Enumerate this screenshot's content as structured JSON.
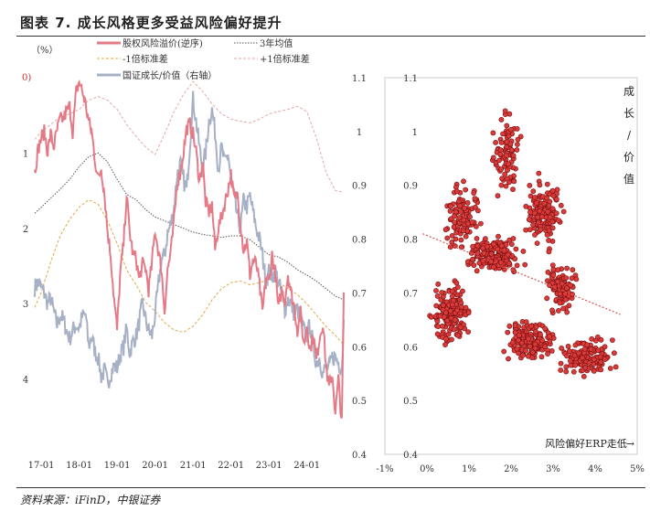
{
  "figure_title": "图表 7. 成长风格更多受益风险偏好提升",
  "source_note": "资料来源：iFinD，中银证券",
  "chart_data": [
    {
      "id": "left",
      "type": "line",
      "left_axis_unit": "（%）",
      "left_axis_zero_label": "0)",
      "left_axis_ticks": [
        "1",
        "2",
        "3",
        "4"
      ],
      "left_ylim": [
        -5,
        0
      ],
      "left_axis_inverted": true,
      "right_axis_label": "",
      "right_ylim": [
        0.4,
        1.1
      ],
      "right_axis_ticks": [
        "0.4",
        "0.5",
        "0.6",
        "0.7",
        "0.8",
        "0.9",
        "1",
        "1.1"
      ],
      "x_ticks": [
        "17-01",
        "18-01",
        "19-01",
        "20-01",
        "21-01",
        "22-01",
        "23-01",
        "24-01"
      ],
      "xlim": [
        2016.83,
        2024.97
      ],
      "legend": [
        {
          "label": "股权风险溢价(逆序)",
          "color": "#e57a86",
          "style": "solid"
        },
        {
          "label": "3年均值",
          "color": "#555555",
          "style": "dotted"
        },
        {
          "label": "-1倍标准差",
          "color": "#e0a84a",
          "style": "dashed"
        },
        {
          "label": "+1倍标准差",
          "color": "#e8a6a6",
          "style": "dashed"
        },
        {
          "label": "国证成长/价值（右轴）",
          "color": "#a7b1c6",
          "style": "solid"
        }
      ],
      "series": [
        {
          "name": "股权风险溢价(逆序)",
          "axis": "left",
          "color": "#e57a86",
          "x": [
            2016.83,
            2016.92,
            2017.0,
            2017.08,
            2017.17,
            2017.25,
            2017.33,
            2017.42,
            2017.5,
            2017.58,
            2017.67,
            2017.75,
            2017.83,
            2017.92,
            2018.0,
            2018.08,
            2018.17,
            2018.25,
            2018.33,
            2018.42,
            2018.5,
            2018.58,
            2018.67,
            2018.75,
            2018.83,
            2018.92,
            2019.0,
            2019.08,
            2019.17,
            2019.25,
            2019.33,
            2019.42,
            2019.5,
            2019.58,
            2019.67,
            2019.75,
            2019.83,
            2019.92,
            2020.0,
            2020.08,
            2020.17,
            2020.25,
            2020.33,
            2020.42,
            2020.5,
            2020.58,
            2020.67,
            2020.75,
            2020.83,
            2020.92,
            2021.0,
            2021.08,
            2021.17,
            2021.25,
            2021.33,
            2021.42,
            2021.5,
            2021.58,
            2021.67,
            2021.75,
            2021.83,
            2021.92,
            2022.0,
            2022.08,
            2022.17,
            2022.25,
            2022.33,
            2022.42,
            2022.5,
            2022.58,
            2022.67,
            2022.75,
            2022.83,
            2022.92,
            2023.0,
            2023.08,
            2023.17,
            2023.25,
            2023.33,
            2023.42,
            2023.5,
            2023.58,
            2023.67,
            2023.75,
            2023.83,
            2023.92,
            2024.0,
            2024.08,
            2024.17,
            2024.25,
            2024.33,
            2024.42,
            2024.5,
            2024.58,
            2024.67,
            2024.75,
            2024.83,
            2024.92,
            2024.97
          ],
          "y": [
            -1.25,
            -0.95,
            -0.8,
            -0.72,
            -0.98,
            -0.75,
            -0.92,
            -0.7,
            -0.55,
            -0.55,
            -0.45,
            -0.38,
            -0.72,
            -0.2,
            -0.05,
            -0.18,
            -0.35,
            -0.58,
            -0.72,
            -1.1,
            -1.35,
            -1.2,
            -1.55,
            -2.05,
            -2.35,
            -2.95,
            -3.35,
            -2.62,
            -2.2,
            -1.55,
            -2.05,
            -2.35,
            -2.4,
            -2.68,
            -2.48,
            -2.52,
            -2.82,
            -2.45,
            -2.02,
            -2.28,
            -2.55,
            -3.1,
            -2.55,
            -2.3,
            -1.9,
            -1.4,
            -1.25,
            -0.98,
            -0.68,
            -0.62,
            -0.75,
            -0.98,
            -1.38,
            -1.1,
            -1.65,
            -1.78,
            -1.68,
            -2.28,
            -1.98,
            -1.85,
            -1.68,
            -1.48,
            -1.28,
            -1.62,
            -1.55,
            -1.92,
            -2.28,
            -2.18,
            -2.62,
            -2.42,
            -2.48,
            -2.75,
            -3.12,
            -2.65,
            -2.72,
            -2.35,
            -2.62,
            -3.08,
            -2.82,
            -2.95,
            -2.6,
            -2.85,
            -3.05,
            -3.35,
            -3.12,
            -3.55,
            -3.28,
            -3.62,
            -3.42,
            -3.75,
            -3.45,
            -3.25,
            -3.8,
            -4.12,
            -3.95,
            -4.45,
            -4.0,
            -4.6,
            -2.85
          ]
        },
        {
          "name": "3年均值",
          "axis": "left",
          "color": "#555555",
          "x": [
            2016.83,
            2017.0,
            2017.25,
            2017.5,
            2017.75,
            2018.0,
            2018.25,
            2018.5,
            2018.75,
            2019.0,
            2019.25,
            2019.5,
            2019.75,
            2020.0,
            2020.25,
            2020.5,
            2020.75,
            2021.0,
            2021.25,
            2021.5,
            2021.75,
            2022.0,
            2022.25,
            2022.5,
            2022.75,
            2023.0,
            2023.25,
            2023.5,
            2023.75,
            2024.0,
            2024.25,
            2024.5,
            2024.75,
            2024.97
          ],
          "y": [
            -1.8,
            -1.72,
            -1.6,
            -1.48,
            -1.35,
            -1.18,
            -1.05,
            -1.0,
            -1.12,
            -1.35,
            -1.55,
            -1.62,
            -1.75,
            -1.85,
            -1.9,
            -1.95,
            -2.0,
            -2.05,
            -2.08,
            -2.1,
            -2.12,
            -2.1,
            -2.1,
            -2.15,
            -2.25,
            -2.35,
            -2.38,
            -2.45,
            -2.55,
            -2.62,
            -2.7,
            -2.8,
            -2.9,
            -2.95
          ]
        },
        {
          "name": "-1倍标准差",
          "axis": "left",
          "color": "#e0a84a",
          "x": [
            2016.83,
            2017.0,
            2017.25,
            2017.5,
            2017.75,
            2018.0,
            2018.25,
            2018.5,
            2018.75,
            2019.0,
            2019.25,
            2019.5,
            2019.75,
            2020.0,
            2020.25,
            2020.5,
            2020.75,
            2021.0,
            2021.25,
            2021.5,
            2021.75,
            2022.0,
            2022.25,
            2022.5,
            2022.75,
            2023.0,
            2023.25,
            2023.5,
            2023.75,
            2024.0,
            2024.25,
            2024.5,
            2024.75,
            2024.97
          ],
          "y": [
            -3.05,
            -2.85,
            -2.45,
            -2.1,
            -1.88,
            -1.72,
            -1.62,
            -1.68,
            -1.9,
            -2.2,
            -2.55,
            -2.75,
            -2.98,
            -3.1,
            -3.25,
            -3.35,
            -3.38,
            -3.3,
            -3.15,
            -2.95,
            -2.8,
            -2.72,
            -2.7,
            -2.75,
            -2.72,
            -2.68,
            -2.72,
            -2.8,
            -2.88,
            -3.0,
            -3.15,
            -3.3,
            -3.42,
            -3.55
          ]
        },
        {
          "name": "+1倍标准差",
          "axis": "left",
          "color": "#e8a6a6",
          "x": [
            2016.83,
            2017.0,
            2017.25,
            2017.5,
            2017.75,
            2018.0,
            2018.25,
            2018.5,
            2018.75,
            2019.0,
            2019.25,
            2019.5,
            2019.75,
            2020.0,
            2020.25,
            2020.5,
            2020.75,
            2021.0,
            2021.25,
            2021.5,
            2021.75,
            2022.0,
            2022.25,
            2022.5,
            2022.75,
            2023.0,
            2023.25,
            2023.5,
            2023.75,
            2024.0,
            2024.25,
            2024.5,
            2024.75,
            2024.97
          ],
          "y": [
            -0.82,
            -0.72,
            -0.62,
            -0.52,
            -0.48,
            -0.42,
            -0.3,
            -0.25,
            -0.3,
            -0.42,
            -0.62,
            -0.78,
            -0.92,
            -1.02,
            -0.75,
            -0.45,
            -0.22,
            -0.05,
            -0.18,
            -0.35,
            -0.48,
            -0.55,
            -0.58,
            -0.6,
            -0.55,
            -0.48,
            -0.45,
            -0.42,
            -0.38,
            -0.45,
            -0.8,
            -1.25,
            -1.5,
            -1.52
          ]
        },
        {
          "name": "国证成长/价值（右轴）",
          "axis": "right",
          "color": "#a7b1c6",
          "x": [
            2016.83,
            2016.92,
            2017.0,
            2017.08,
            2017.17,
            2017.25,
            2017.33,
            2017.42,
            2017.5,
            2017.58,
            2017.67,
            2017.75,
            2017.83,
            2017.92,
            2018.0,
            2018.08,
            2018.17,
            2018.25,
            2018.33,
            2018.42,
            2018.5,
            2018.58,
            2018.67,
            2018.75,
            2018.83,
            2018.92,
            2019.0,
            2019.08,
            2019.17,
            2019.25,
            2019.33,
            2019.42,
            2019.5,
            2019.58,
            2019.67,
            2019.75,
            2019.83,
            2019.92,
            2020.0,
            2020.08,
            2020.17,
            2020.25,
            2020.33,
            2020.42,
            2020.5,
            2020.58,
            2020.67,
            2020.75,
            2020.83,
            2020.92,
            2021.0,
            2021.08,
            2021.17,
            2021.25,
            2021.33,
            2021.42,
            2021.5,
            2021.58,
            2021.67,
            2021.75,
            2021.83,
            2021.92,
            2022.0,
            2022.08,
            2022.17,
            2022.25,
            2022.33,
            2022.42,
            2022.5,
            2022.58,
            2022.67,
            2022.75,
            2022.83,
            2022.92,
            2023.0,
            2023.08,
            2023.17,
            2023.25,
            2023.33,
            2023.42,
            2023.5,
            2023.58,
            2023.67,
            2023.75,
            2023.83,
            2023.92,
            2024.0,
            2024.08,
            2024.17,
            2024.25,
            2024.33,
            2024.42,
            2024.5,
            2024.58,
            2024.67,
            2024.75,
            2024.83,
            2024.92,
            2024.97
          ],
          "y": [
            0.71,
            0.72,
            0.71,
            0.7,
            0.68,
            0.69,
            0.665,
            0.64,
            0.66,
            0.65,
            0.63,
            0.615,
            0.63,
            0.64,
            0.635,
            0.655,
            0.66,
            0.6,
            0.62,
            0.59,
            0.58,
            0.545,
            0.555,
            0.53,
            0.55,
            0.565,
            0.56,
            0.585,
            0.6,
            0.635,
            0.59,
            0.61,
            0.62,
            0.645,
            0.68,
            0.65,
            0.63,
            0.62,
            0.66,
            0.71,
            0.76,
            0.77,
            0.81,
            0.83,
            0.86,
            0.92,
            0.94,
            0.91,
            0.89,
            0.98,
            1.06,
            1.02,
            0.97,
            0.93,
            0.96,
            1.02,
            1.04,
            1.0,
            0.93,
            0.97,
            0.94,
            0.96,
            0.91,
            0.88,
            0.84,
            0.82,
            0.87,
            0.86,
            0.88,
            0.85,
            0.82,
            0.8,
            0.77,
            0.72,
            0.74,
            0.73,
            0.74,
            0.72,
            0.7,
            0.67,
            0.69,
            0.68,
            0.66,
            0.67,
            0.65,
            0.63,
            0.62,
            0.64,
            0.6,
            0.57,
            0.58,
            0.55,
            0.56,
            0.56,
            0.58,
            0.58,
            0.57,
            0.56,
            0.65
          ]
        }
      ]
    },
    {
      "id": "right",
      "type": "scatter",
      "xlabel": "风险偏好ERP走低",
      "ylabel": "成长/价值",
      "xlim": [
        -1,
        5
      ],
      "ylim": [
        0.4,
        1.1
      ],
      "x_ticks": [
        "-1%",
        "0%",
        "1%",
        "2%",
        "3%",
        "4%",
        "5%"
      ],
      "y_ticks": [
        "0.4",
        "0.5",
        "0.6",
        "0.7",
        "0.8",
        "0.9",
        "1",
        "1.1"
      ],
      "trendline": {
        "x": [
          -0.1,
          4.6
        ],
        "y": [
          0.81,
          0.66
        ],
        "color": "#e05050",
        "style": "dotted"
      },
      "marker_color": "#d93a3a",
      "clusters": [
        {
          "cx": 0.55,
          "cy": 0.66,
          "sx": 0.35,
          "sy": 0.045,
          "n": 170
        },
        {
          "cx": 0.85,
          "cy": 0.84,
          "sx": 0.35,
          "sy": 0.05,
          "n": 110
        },
        {
          "cx": 1.6,
          "cy": 0.77,
          "sx": 0.5,
          "sy": 0.025,
          "n": 190
        },
        {
          "cx": 1.9,
          "cy": 0.96,
          "sx": 0.3,
          "sy": 0.07,
          "n": 90
        },
        {
          "cx": 2.75,
          "cy": 0.85,
          "sx": 0.35,
          "sy": 0.05,
          "n": 140
        },
        {
          "cx": 2.45,
          "cy": 0.61,
          "sx": 0.45,
          "sy": 0.03,
          "n": 170
        },
        {
          "cx": 3.2,
          "cy": 0.71,
          "sx": 0.3,
          "sy": 0.035,
          "n": 110
        },
        {
          "cx": 3.8,
          "cy": 0.58,
          "sx": 0.55,
          "sy": 0.03,
          "n": 150
        }
      ]
    }
  ]
}
